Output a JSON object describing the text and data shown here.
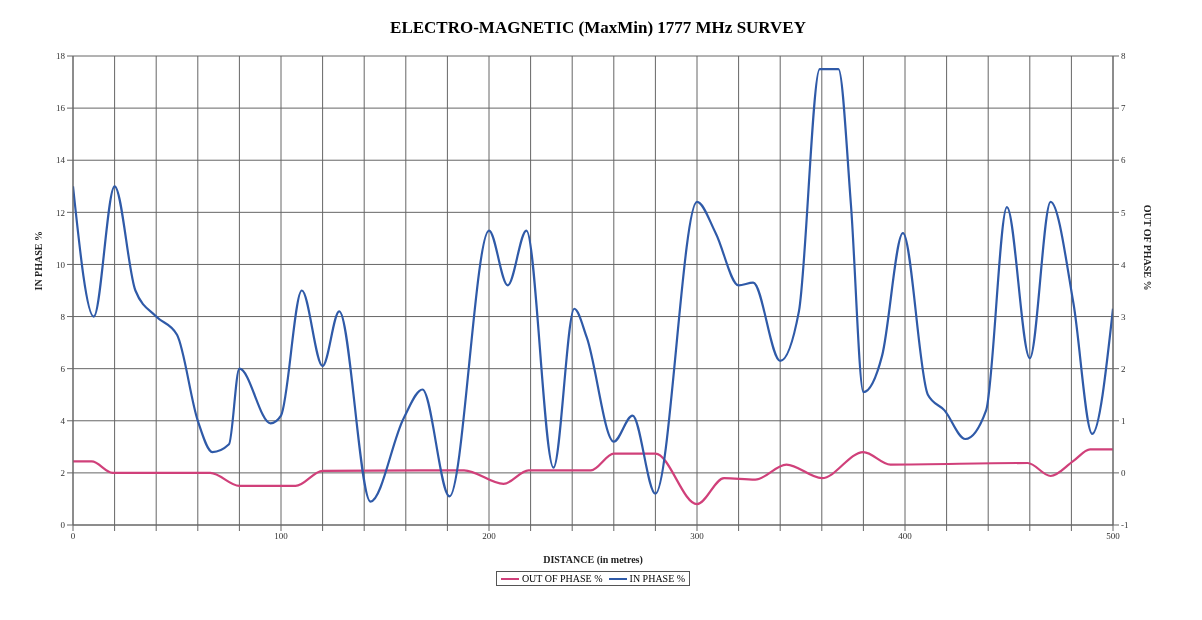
{
  "chart_data": {
    "type": "line",
    "title": "ELECTRO-MAGNETIC (MaxMin) 1777 MHz SURVEY",
    "xlabel": "DISTANCE (in metres)",
    "ylabel": "IN PHASE %",
    "y2label": "OUT OF PHASE %",
    "series": [
      {
        "name": "OUT OF  PHASE %",
        "color": "#d0407a",
        "axis": "y2",
        "x": [
          0,
          9,
          19,
          40,
          60,
          66,
          80,
          107,
          120,
          188,
          207,
          219,
          249,
          260,
          280,
          300,
          313,
          328,
          343,
          360,
          380,
          393,
          459,
          470,
          481,
          489,
          500
        ],
        "values": [
          0.22,
          0.22,
          0,
          0,
          0,
          0,
          -0.25,
          -0.25,
          0.04,
          0.05,
          -0.21,
          0.05,
          0.05,
          0.37,
          0.37,
          -0.6,
          -0.1,
          -0.13,
          0.16,
          -0.1,
          0.4,
          0.16,
          0.19,
          -0.06,
          0.23,
          0.45,
          0.45
        ]
      },
      {
        "name": "IN PHASE %",
        "color": "#2f5aa8",
        "x": [
          0,
          10,
          20,
          30,
          40,
          50,
          60,
          67,
          75,
          80,
          95,
          100,
          110,
          120,
          128,
          143,
          159,
          168,
          181,
          200,
          209,
          218,
          231,
          241,
          247,
          260,
          269,
          280,
          300,
          309,
          320,
          327,
          340,
          349,
          359,
          368,
          374,
          380,
          389,
          399,
          411,
          419,
          429,
          439,
          449,
          460,
          470,
          481,
          490,
          500
        ],
        "values": [
          13,
          8,
          13,
          9,
          8,
          7.3,
          4,
          2.8,
          3.1,
          6,
          3.9,
          4.2,
          9,
          6.1,
          8.2,
          0.9,
          4.1,
          5.2,
          1.1,
          11.3,
          9.2,
          11.3,
          2.2,
          8.3,
          7.2,
          3.2,
          4.2,
          1.2,
          12.4,
          11.2,
          9.2,
          9.3,
          6.3,
          8.2,
          17.5,
          17.5,
          12.3,
          5.1,
          6.5,
          11.2,
          5,
          4.4,
          3.3,
          4.4,
          12.2,
          6.4,
          12.4,
          8.5,
          3.5,
          8.3
        ]
      }
    ],
    "xlim": [
      0,
      500
    ],
    "xticks": [
      0,
      {
        "value": 20,
        "label": null
      },
      {
        "value": 40,
        "label": null
      },
      {
        "value": 60,
        "label": null
      },
      {
        "value": 80,
        "label": null
      },
      100,
      {
        "value": 120,
        "label": null
      },
      {
        "value": 140,
        "label": null
      },
      {
        "value": 160,
        "label": null
      },
      {
        "value": 180,
        "label": null
      },
      200,
      {
        "value": 220,
        "label": null
      },
      {
        "value": 240,
        "label": null
      },
      {
        "value": 260,
        "label": null
      },
      {
        "value": 280,
        "label": null
      },
      300,
      {
        "value": 320,
        "label": null
      },
      {
        "value": 340,
        "label": null
      },
      {
        "value": 360,
        "label": null
      },
      {
        "value": 380,
        "label": null
      },
      400,
      {
        "value": 420,
        "label": null
      },
      {
        "value": 440,
        "label": null
      },
      {
        "value": 460,
        "label": null
      },
      {
        "value": 480,
        "label": null
      },
      500
    ],
    "ylim": [
      0,
      18
    ],
    "yticks": [
      0,
      2,
      4,
      6,
      8,
      10,
      12,
      14,
      16,
      18
    ],
    "y2lim": [
      -1,
      8
    ],
    "y2ticks": [
      -1,
      0,
      1,
      2,
      3,
      4,
      5,
      6,
      7,
      8
    ],
    "grid": true,
    "legend": "bottom",
    "marker": "none",
    "line_style": "solid"
  }
}
